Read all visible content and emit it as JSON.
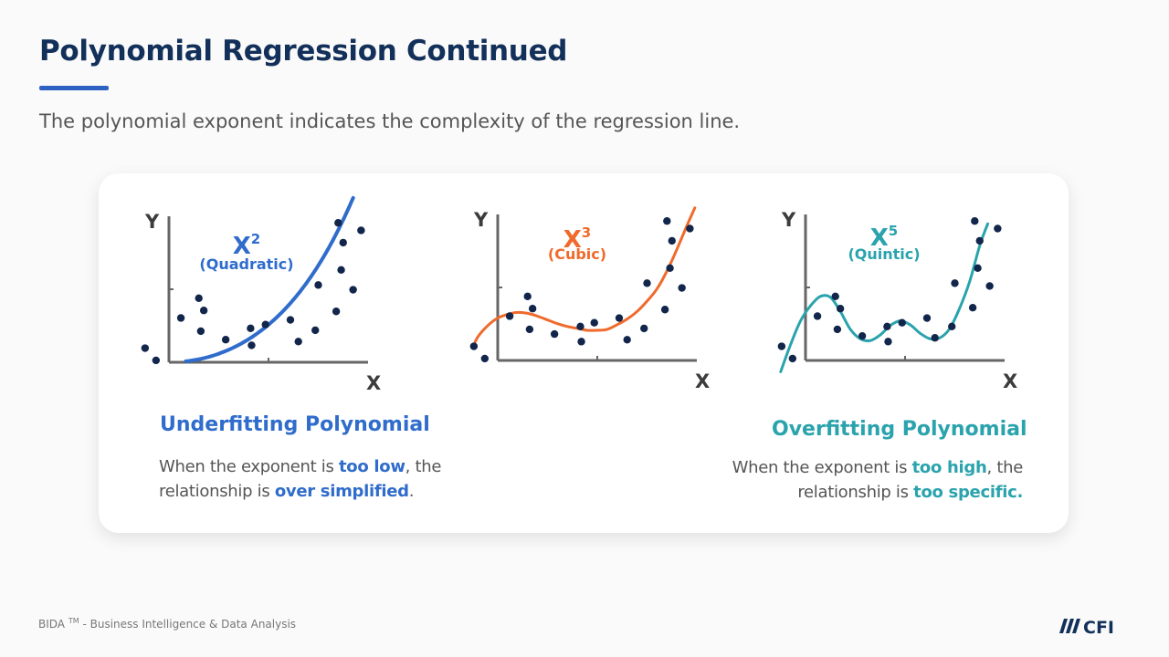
{
  "page": {
    "title": "Polynomial Regression Continued",
    "subtitle": "The polynomial exponent indicates the complexity of the regression line."
  },
  "colors": {
    "title": "#12305a",
    "accent": "#2e62c2",
    "quadratic": "#2f6ccb",
    "cubic": "#f06a2b",
    "quintic": "#2aa3ad",
    "points": "#12264b",
    "axis": "#666666"
  },
  "chart_data": [
    {
      "type": "scatter",
      "xlabel": "X",
      "ylabel": "Y",
      "exponent": {
        "base": "X",
        "power": "2",
        "name": "(Quadratic)"
      },
      "curve_color": "#2f6ccb",
      "xlim": [
        -0.25,
        2.0
      ],
      "ylim": [
        0,
        1.55
      ],
      "points": [
        [
          -0.24,
          0.15
        ],
        [
          -0.13,
          0.02
        ],
        [
          0.12,
          0.47
        ],
        [
          0.3,
          0.68
        ],
        [
          0.32,
          0.33
        ],
        [
          0.35,
          0.55
        ],
        [
          0.57,
          0.24
        ],
        [
          0.82,
          0.36
        ],
        [
          0.83,
          0.18
        ],
        [
          0.97,
          0.4
        ],
        [
          1.22,
          0.45
        ],
        [
          1.3,
          0.22
        ],
        [
          1.47,
          0.34
        ],
        [
          1.5,
          0.82
        ],
        [
          1.68,
          0.54
        ],
        [
          1.7,
          1.48
        ],
        [
          1.73,
          0.98
        ],
        [
          1.75,
          1.27
        ],
        [
          1.85,
          0.77
        ],
        [
          1.93,
          1.4
        ]
      ],
      "curve": {
        "kind": "poly",
        "coef": [
          0,
          0,
          0.35,
          0.005,
          0.044
        ],
        "domain": [
          0.17,
          1.85
        ]
      }
    },
    {
      "type": "scatter",
      "xlabel": "X",
      "ylabel": "Y",
      "exponent": {
        "base": "X",
        "power": "3",
        "name": "(Cubic)"
      },
      "curve_color": "#f06a2b",
      "xlim": [
        -0.25,
        2.0
      ],
      "ylim": [
        0,
        1.55
      ],
      "points": [
        [
          -0.24,
          0.15
        ],
        [
          -0.13,
          0.02
        ],
        [
          0.12,
          0.47
        ],
        [
          0.3,
          0.68
        ],
        [
          0.32,
          0.33
        ],
        [
          0.35,
          0.55
        ],
        [
          0.57,
          0.28
        ],
        [
          0.83,
          0.36
        ],
        [
          0.84,
          0.2
        ],
        [
          0.97,
          0.4
        ],
        [
          1.22,
          0.45
        ],
        [
          1.3,
          0.22
        ],
        [
          1.47,
          0.34
        ],
        [
          1.5,
          0.82
        ],
        [
          1.68,
          0.54
        ],
        [
          1.7,
          1.48
        ],
        [
          1.73,
          0.98
        ],
        [
          1.75,
          1.27
        ],
        [
          1.85,
          0.77
        ],
        [
          1.93,
          1.4
        ]
      ],
      "curve": {
        "kind": "points",
        "values": [
          [
            -0.25,
            0.14
          ],
          [
            -0.2,
            0.25
          ],
          [
            -0.1,
            0.37
          ],
          [
            0.0,
            0.45
          ],
          [
            0.1,
            0.49
          ],
          [
            0.2,
            0.51
          ],
          [
            0.3,
            0.5
          ],
          [
            0.4,
            0.47
          ],
          [
            0.5,
            0.43
          ],
          [
            0.6,
            0.39
          ],
          [
            0.7,
            0.36
          ],
          [
            0.8,
            0.34
          ],
          [
            0.9,
            0.32
          ],
          [
            1.0,
            0.32
          ],
          [
            1.1,
            0.33
          ],
          [
            1.2,
            0.38
          ],
          [
            1.3,
            0.44
          ],
          [
            1.4,
            0.52
          ],
          [
            1.5,
            0.63
          ],
          [
            1.6,
            0.76
          ],
          [
            1.7,
            0.95
          ],
          [
            1.8,
            1.18
          ],
          [
            1.9,
            1.43
          ],
          [
            1.98,
            1.62
          ]
        ]
      }
    },
    {
      "type": "scatter",
      "xlabel": "X",
      "ylabel": "Y",
      "exponent": {
        "base": "X",
        "power": "5",
        "name": "(Quintic)"
      },
      "curve_color": "#2aa3ad",
      "xlim": [
        -0.25,
        2.0
      ],
      "ylim": [
        0,
        1.55
      ],
      "points": [
        [
          -0.24,
          0.15
        ],
        [
          -0.13,
          0.02
        ],
        [
          0.12,
          0.47
        ],
        [
          0.3,
          0.68
        ],
        [
          0.32,
          0.33
        ],
        [
          0.35,
          0.55
        ],
        [
          0.57,
          0.26
        ],
        [
          0.82,
          0.36
        ],
        [
          0.83,
          0.2
        ],
        [
          0.97,
          0.4
        ],
        [
          1.22,
          0.45
        ],
        [
          1.3,
          0.24
        ],
        [
          1.47,
          0.36
        ],
        [
          1.5,
          0.82
        ],
        [
          1.68,
          0.56
        ],
        [
          1.7,
          1.48
        ],
        [
          1.73,
          0.98
        ],
        [
          1.75,
          1.27
        ],
        [
          1.85,
          0.79
        ],
        [
          1.93,
          1.4
        ]
      ],
      "curve": {
        "kind": "points",
        "values": [
          [
            -0.25,
            -0.12
          ],
          [
            -0.15,
            0.17
          ],
          [
            -0.05,
            0.42
          ],
          [
            0.05,
            0.58
          ],
          [
            0.15,
            0.68
          ],
          [
            0.25,
            0.67
          ],
          [
            0.35,
            0.52
          ],
          [
            0.45,
            0.33
          ],
          [
            0.55,
            0.23
          ],
          [
            0.65,
            0.21
          ],
          [
            0.75,
            0.27
          ],
          [
            0.85,
            0.37
          ],
          [
            0.95,
            0.42
          ],
          [
            1.05,
            0.38
          ],
          [
            1.15,
            0.29
          ],
          [
            1.25,
            0.23
          ],
          [
            1.35,
            0.24
          ],
          [
            1.45,
            0.34
          ],
          [
            1.55,
            0.56
          ],
          [
            1.65,
            0.84
          ],
          [
            1.75,
            1.22
          ],
          [
            1.83,
            1.45
          ]
        ]
      }
    }
  ],
  "under": {
    "heading": "Underfitting Polynomial",
    "l1_a": "When the exponent is ",
    "l1_b": "too low",
    "l1_c": ", the",
    "l2_a": "relationship is ",
    "l2_b": "over simplified",
    "l2_c": "."
  },
  "over": {
    "heading": "Overfitting Polynomial",
    "l1_a": "When the exponent is ",
    "l1_b": "too high",
    "l1_c": ", the",
    "l2_a": "relationship is ",
    "l2_b": "too specific."
  },
  "footer": {
    "program": "BIDA",
    "tm": "TM",
    "rest": " - Business Intelligence & Data Analysis",
    "logo_text": "CFI"
  }
}
